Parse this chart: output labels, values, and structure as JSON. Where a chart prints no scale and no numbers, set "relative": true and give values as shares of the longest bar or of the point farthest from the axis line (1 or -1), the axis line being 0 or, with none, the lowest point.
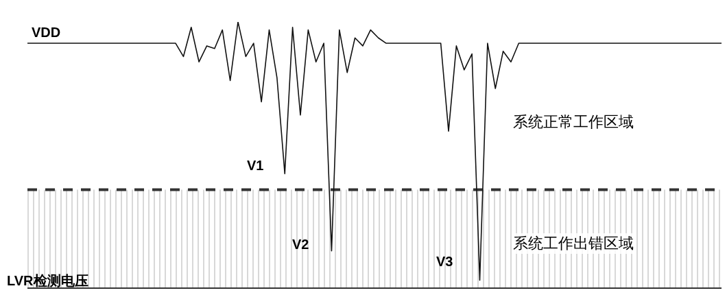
{
  "chart_data": {
    "type": "line",
    "relative": true,
    "marker": "none",
    "line_style": "solid",
    "categories": [
      null,
      null,
      null,
      null,
      null,
      null,
      null,
      null,
      null,
      null,
      null,
      null,
      null,
      null,
      null,
      null,
      null,
      null,
      null,
      null,
      null,
      null,
      null,
      null,
      null,
      null,
      null,
      null,
      null,
      null,
      null,
      null,
      null,
      null,
      null,
      null,
      null,
      null,
      null,
      null,
      null,
      null,
      null,
      null,
      null,
      null,
      null,
      null,
      null,
      null,
      null,
      null,
      null,
      null,
      null,
      null,
      null,
      null,
      null,
      null,
      null,
      null,
      null,
      null,
      null,
      null,
      null,
      null,
      null,
      null,
      null,
      null,
      null,
      null,
      null,
      null,
      null,
      null,
      null,
      null,
      null,
      null,
      null,
      null,
      null,
      null,
      null,
      null,
      null,
      null
    ],
    "series": [
      {
        "color": "#111111",
        "values": [
          0.92,
          0.92,
          0.92,
          0.92,
          0.92,
          0.92,
          0.92,
          0.92,
          0.92,
          0.92,
          0.92,
          0.92,
          0.92,
          0.92,
          0.92,
          0.92,
          0.92,
          0.92,
          0.92,
          0.92,
          0.87,
          0.98,
          0.85,
          0.91,
          0.9,
          0.97,
          0.78,
          1,
          0.87,
          0.92,
          0.7,
          0.97,
          0.79,
          0.43,
          0.98,
          0.65,
          0.97,
          0.85,
          0.92,
          0.14,
          0.97,
          0.81,
          0.94,
          0.91,
          0.97,
          0.94,
          0.92,
          0.92,
          0.92,
          0.92,
          0.92,
          0.92,
          0.92,
          0.92,
          0.59,
          0.91,
          0.82,
          0.88,
          0.03,
          0.92,
          0.75,
          0.89,
          0.85,
          0.92,
          0.92,
          0.92,
          0.92,
          0.92,
          0.92,
          0.92,
          0.92,
          0.92,
          0.92,
          0.92,
          0.92,
          0.92,
          0.92,
          0.92,
          0.92,
          0.92,
          0.92,
          0.92,
          0.92,
          0.92,
          0.92,
          0.92,
          0.92,
          0.92,
          0.92,
          0.92
        ]
      }
    ],
    "ref_lines": [
      {
        "axis": "y",
        "value": 0.37,
        "color": "#333333",
        "line_style": "dashed"
      }
    ],
    "bands": [
      {
        "axis": "y",
        "from": 0,
        "to": 0.37,
        "label": "系统工作出错区域",
        "color": "#d8d8d8"
      }
    ],
    "annotations": [
      "VDD",
      "V1",
      "V2",
      "V3",
      "系统正常工作区域",
      "LVR检测电压"
    ]
  }
}
